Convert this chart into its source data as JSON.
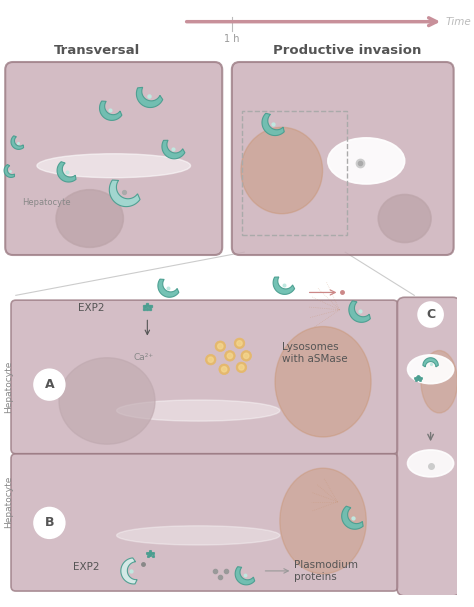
{
  "bg_color": "#ffffff",
  "cell_color": "#c9acb6",
  "cell_border": "#9a7a82",
  "nucleus_color": "#b89aa0",
  "nucleus_border": "#9a7a82",
  "teal_light": "#a0d8d0",
  "teal_mid": "#6dbfb0",
  "teal_dark": "#4a9e90",
  "orange_dot": "#e8b860",
  "gray_dot": "#888888",
  "arrow_pink": "#c8909a",
  "warm_brown": "#c8906a",
  "text_transversal": "Transversal",
  "text_productive": "Productive invasion",
  "text_time": "Time",
  "text_1h": "1 h",
  "text_hepatocyte": "Hepatocyte",
  "text_exp2_a": "EXP2",
  "text_exp2_b": "EXP2",
  "text_ca": "Ca²⁺",
  "text_lysosomes": "Lysosomes\nwith aSMase",
  "text_plasmodium": "Plasmodium\nproteins",
  "label_A": "A",
  "label_B": "B",
  "label_C": "C",
  "dashed_box_color": "#999999",
  "line_gray": "#aaaaaa"
}
